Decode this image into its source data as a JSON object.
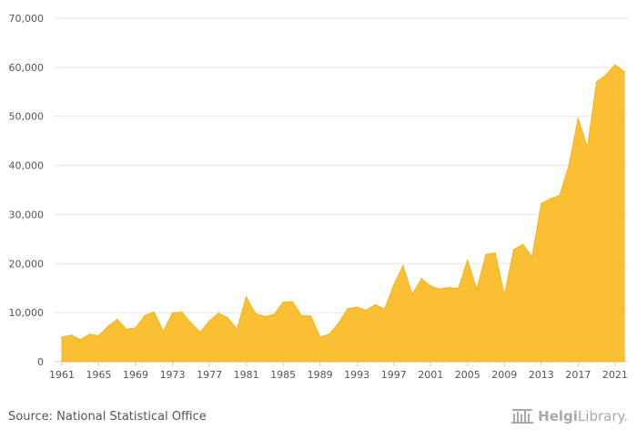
{
  "source_text": "Source: National Statistical Office",
  "logo": {
    "part1": "Helgi",
    "part2": "Library."
  },
  "colors": {
    "area": "#FBBF33",
    "area_stroke": "#F2B21E",
    "grid": "#e6e6e6",
    "axis": "#cccccc",
    "text": "#555555",
    "logo": "#a9a9a9"
  },
  "chart_data": {
    "type": "area",
    "title": "",
    "xlabel": "",
    "ylabel": "",
    "ylim": [
      0,
      70000
    ],
    "yticks": [
      0,
      10000,
      20000,
      30000,
      40000,
      50000,
      60000,
      70000
    ],
    "ytick_labels": [
      "0",
      "10,000",
      "20,000",
      "30,000",
      "40,000",
      "50,000",
      "60,000",
      "70,000"
    ],
    "xticks": [
      1961,
      1965,
      1969,
      1973,
      1977,
      1981,
      1985,
      1989,
      1993,
      1997,
      2001,
      2005,
      2009,
      2013,
      2017,
      2021
    ],
    "grid": true,
    "x": [
      1961,
      1962,
      1963,
      1964,
      1965,
      1966,
      1967,
      1968,
      1969,
      1970,
      1971,
      1972,
      1973,
      1974,
      1975,
      1976,
      1977,
      1978,
      1979,
      1980,
      1981,
      1982,
      1983,
      1984,
      1985,
      1986,
      1987,
      1988,
      1989,
      1990,
      1991,
      1992,
      1993,
      1994,
      1995,
      1996,
      1997,
      1998,
      1999,
      2000,
      2001,
      2002,
      2003,
      2004,
      2005,
      2006,
      2007,
      2008,
      2009,
      2010,
      2011,
      2012,
      2013,
      2014,
      2015,
      2016,
      2017,
      2018,
      2019,
      2020,
      2021,
      2022
    ],
    "values": [
      5000,
      5400,
      4500,
      5600,
      5300,
      7200,
      8600,
      6600,
      6900,
      9400,
      10100,
      6100,
      9900,
      10100,
      7900,
      6000,
      8300,
      9900,
      8900,
      6600,
      13200,
      9800,
      9200,
      9600,
      12100,
      12200,
      9400,
      9300,
      5000,
      5600,
      7800,
      10800,
      11100,
      10500,
      11600,
      10700,
      15600,
      19500,
      13700,
      16900,
      15400,
      14800,
      15100,
      14900,
      20700,
      14700,
      21900,
      22100,
      13500,
      22800,
      23900,
      21400,
      32200,
      33200,
      33900,
      40000,
      49600,
      43600,
      57000,
      58400,
      60500,
      59100
    ]
  }
}
